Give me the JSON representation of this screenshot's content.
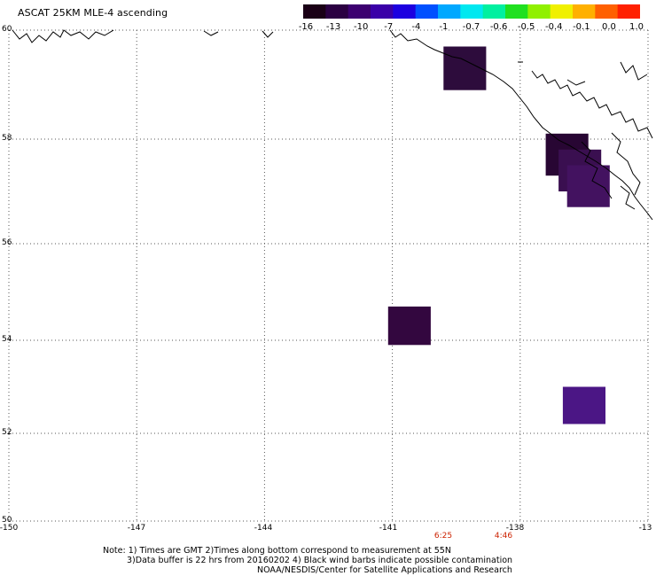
{
  "title": "ASCAT 25KM MLE-4 ascending",
  "colorbar": {
    "colors": [
      "#1a0016",
      "#2b0042",
      "#3c0070",
      "#3a00a8",
      "#1c00e0",
      "#0050ff",
      "#00a8ff",
      "#00e8f0",
      "#00f0a0",
      "#20e020",
      "#90f000",
      "#f0f000",
      "#ffb000",
      "#ff6000",
      "#ff2000"
    ],
    "labels": [
      "-16",
      "-13",
      "-10",
      "-7",
      "-4",
      "-1",
      "-0.7",
      "-0.6",
      "-0.5",
      "-0.4",
      "-0.1",
      "0.0",
      "1.0"
    ]
  },
  "axes": {
    "lat_labels": [
      "60",
      "58",
      "56",
      "54",
      "52",
      "50"
    ],
    "lon_labels": [
      "-150",
      "-147",
      "-144",
      "-141",
      "-138",
      "-13"
    ]
  },
  "swath_times": [
    "6:25",
    "4:46"
  ],
  "notes": {
    "line1": "Note: 1) Times are GMT 2)Times along bottom correspond to measurement at 55N",
    "line2": "3)Data buffer is 22 hrs from 20160202 4) Black wind barbs indicate possible contamination",
    "line3": "NOAA/NESDIS/Center for Satellite Applications and Research"
  },
  "data_cells": [
    {
      "lon": -139.3,
      "lat": 59.3,
      "color": "#2d0c3c"
    },
    {
      "lon": -136.9,
      "lat": 57.7,
      "color": "#280633"
    },
    {
      "lon": -136.6,
      "lat": 57.4,
      "color": "#3a0f50"
    },
    {
      "lon": -136.4,
      "lat": 57.1,
      "color": "#431260"
    },
    {
      "lon": -140.6,
      "lat": 54.3,
      "color": "#33073f"
    },
    {
      "lon": -136.5,
      "lat": 52.6,
      "color": "#4b1685"
    }
  ],
  "colors": {
    "grid": "#555555",
    "coast": "#000000",
    "time_label": "#cc2200"
  }
}
